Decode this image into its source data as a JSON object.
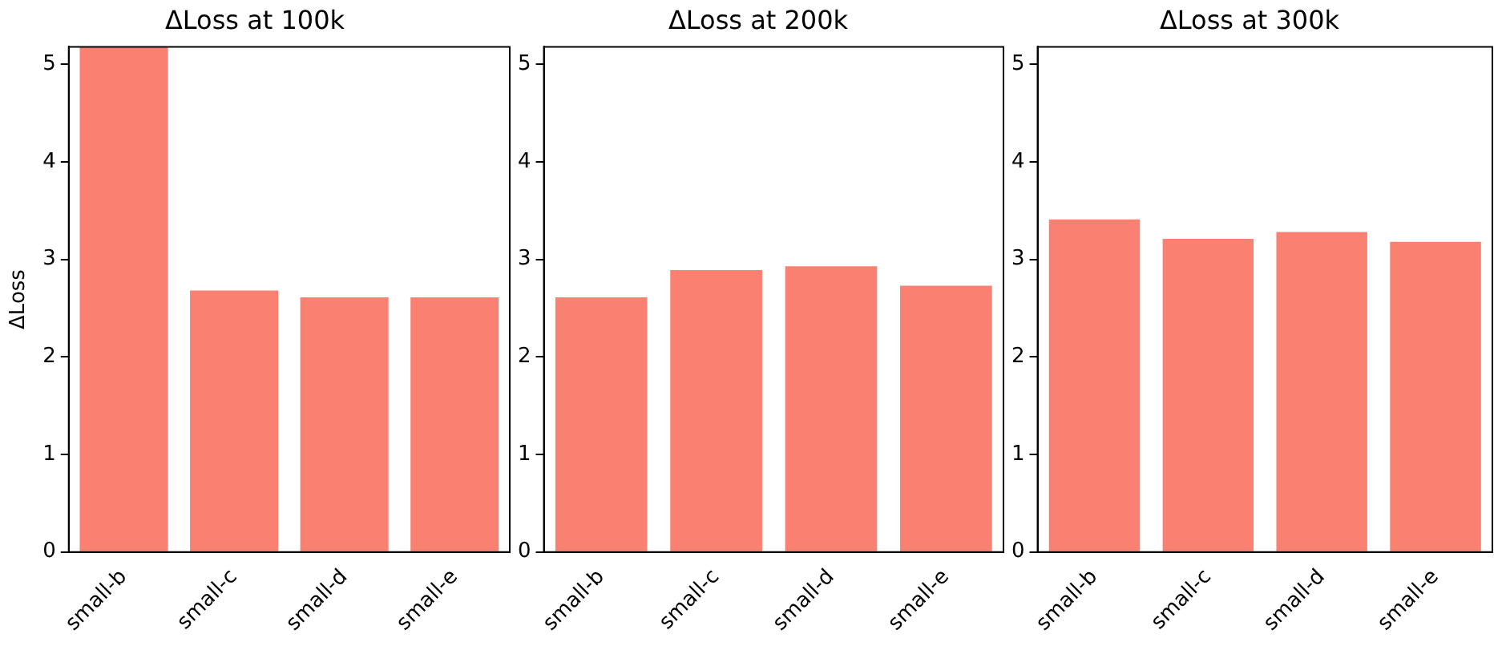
{
  "chart_data": [
    {
      "type": "bar",
      "title": "ΔLoss at 100k",
      "ylabel": "ΔLoss",
      "categories": [
        "small-b",
        "small-c",
        "small-d",
        "small-e"
      ],
      "values": [
        5.18,
        2.68,
        2.61,
        2.61
      ],
      "color": "#fa8072",
      "ylim": [
        0,
        5.18
      ],
      "yticks": [
        0,
        1,
        2,
        3,
        4,
        5
      ],
      "grid": false
    },
    {
      "type": "bar",
      "title": "ΔLoss at 200k",
      "categories": [
        "small-b",
        "small-c",
        "small-d",
        "small-e"
      ],
      "values": [
        2.61,
        2.89,
        2.93,
        2.73
      ],
      "color": "#fa8072",
      "ylim": [
        0,
        5.18
      ],
      "yticks": [
        0,
        1,
        2,
        3,
        4,
        5
      ],
      "grid": false
    },
    {
      "type": "bar",
      "title": "ΔLoss at 300k",
      "categories": [
        "small-b",
        "small-c",
        "small-d",
        "small-e"
      ],
      "values": [
        3.41,
        3.21,
        3.28,
        3.18
      ],
      "color": "#fa8072",
      "ylim": [
        0,
        5.18
      ],
      "yticks": [
        0,
        1,
        2,
        3,
        4,
        5
      ],
      "grid": false
    }
  ]
}
